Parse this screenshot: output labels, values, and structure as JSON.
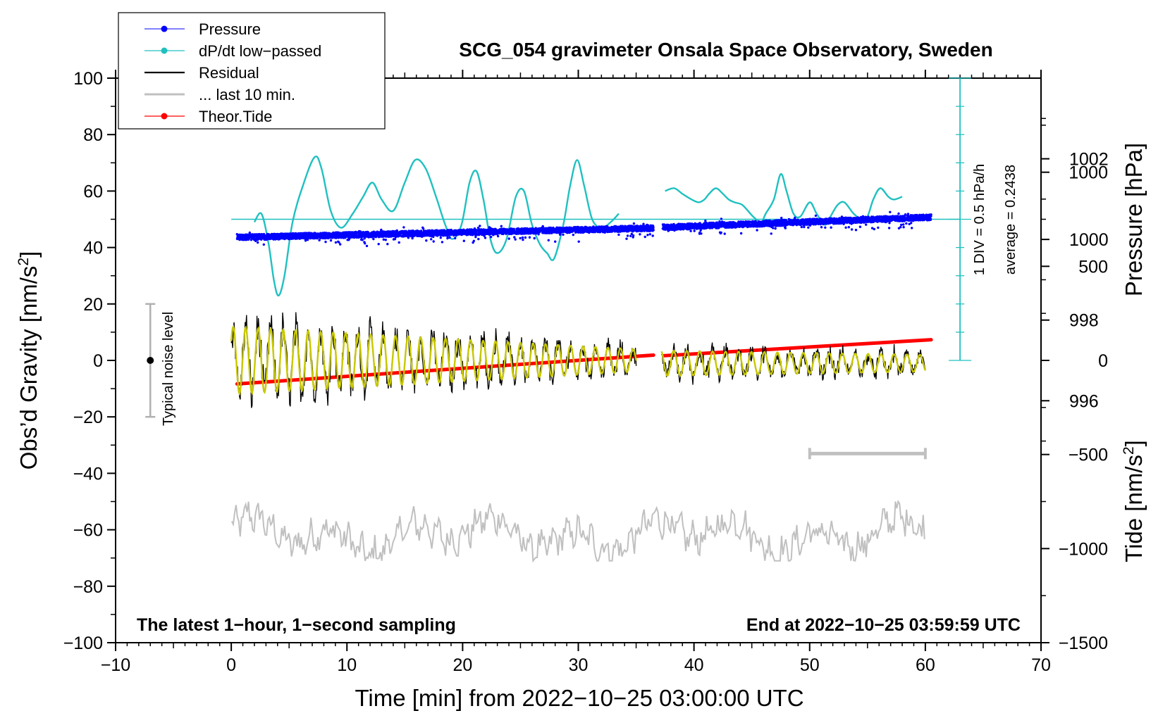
{
  "chart_data": {
    "type": "line",
    "title": "SCG_054 gravimeter Onsala Space Observatory, Sweden",
    "xlabel": "Time [min] from 2022−10−25 03:00:00 UTC",
    "ylabel_left": "Obs’d Gravity [nm/s",
    "ylabel_left_sup": "2",
    "ylabel_left_end": "]",
    "ylabel_right_pressure": "Pressure [hPa]",
    "ylabel_right_tide": "Tide [nm/s",
    "ylabel_right_tide_sup": "2",
    "ylabel_right_tide_end": "]",
    "xlim": [
      -10,
      70
    ],
    "ylim": [
      -100,
      100
    ],
    "x_ticks": [
      -10,
      0,
      10,
      20,
      30,
      40,
      50,
      60,
      70
    ],
    "x_tick_labels": [
      "−10",
      "0",
      "10",
      "20",
      "30",
      "40",
      "50",
      "60",
      "70"
    ],
    "y_ticks": [
      -100,
      -80,
      -60,
      -40,
      -20,
      0,
      20,
      40,
      60,
      80,
      100
    ],
    "y_tick_labels": [
      "−100",
      "−80",
      "−60",
      "−40",
      "−20",
      "0",
      "20",
      "40",
      "60",
      "80",
      "100"
    ],
    "pressure_axis": {
      "ylim": [
        990.0,
        1004.0
      ],
      "ticks": [
        996,
        998,
        1000,
        1002
      ],
      "tick_labels": [
        "996",
        "998",
        "1000",
        "1002"
      ]
    },
    "tide_axis": {
      "ylim": [
        -1500,
        1500
      ],
      "ticks": [
        -1500,
        -1000,
        -500,
        0,
        500,
        1000
      ],
      "tick_labels": [
        "−1500",
        "−1000",
        "−500",
        "0",
        "500",
        "1000"
      ]
    },
    "legend": {
      "placement": "top-left",
      "entries": [
        {
          "label": "Pressure",
          "color": "#0000ff",
          "marker": "dot"
        },
        {
          "label": "dP/dt low−passed",
          "color": "#20c0c0",
          "marker": "dot"
        },
        {
          "label": "Residual",
          "color": "#000000",
          "marker": "none"
        },
        {
          "label": "... last 10 min.",
          "color": "#c0c0c0",
          "marker": "none"
        },
        {
          "label": "Theor.Tide",
          "color": "#ff0000",
          "marker": "dot"
        }
      ]
    },
    "annotations": {
      "note_left": "The latest 1−hour, 1−second sampling",
      "note_right": "End at 2022−10−25 03:59:59 UTC",
      "noise_label": "Typical noise level",
      "noise_bar": {
        "x": -7,
        "center": 0,
        "low": -20,
        "high": 20
      },
      "dpdt_scale_text": "1 DIV = 0.5 hPa/h",
      "dpdt_average_text": "average = 0.2438",
      "dpdt_scale_bar": {
        "x": 63,
        "bottom": 0,
        "top": 100,
        "baseline": 50
      },
      "last10_bar": {
        "x_start": 50,
        "x_end": 60,
        "y": -33
      }
    },
    "series": [
      {
        "name": "Pressure",
        "color": "#0000ff",
        "axis": "pressure",
        "segments": [
          {
            "x": [
              0.5,
              5,
              10,
              15,
              20,
              25,
              30,
              36.5
            ],
            "y": [
              1000.05,
              1000.08,
              1000.12,
              1000.17,
              1000.2,
              1000.23,
              1000.25,
              1000.28
            ]
          },
          {
            "x": [
              37.3,
              42,
              47,
              52,
              57,
              60.5
            ],
            "y": [
              1000.3,
              1000.35,
              1000.4,
              1000.45,
              1000.5,
              1000.55
            ]
          }
        ]
      },
      {
        "name": "dP/dt low−passed",
        "color": "#20c0c0",
        "axis": "gravity_scaled",
        "segments": [
          {
            "x": [
              2.0,
              2.6,
              3.2,
              3.7,
              4.1,
              4.6,
              5.3,
              6.2,
              7.2,
              7.8,
              8.6,
              9.5,
              10.5,
              11.4,
              12.2,
              13.0,
              14.0,
              15.0,
              15.9,
              16.8,
              17.7,
              18.5,
              19.1,
              19.9,
              20.6,
              21.2,
              21.8,
              22.4,
              23.0,
              23.8,
              24.6,
              25.3,
              26.0,
              26.7,
              27.3,
              27.9,
              28.7,
              29.3,
              29.9,
              30.5,
              31.2,
              32.0,
              32.8,
              33.5
            ],
            "y": [
              49,
              52,
              42,
              28,
              23,
              30,
              49,
              62,
              72,
              68,
              53,
              47,
              52,
              58,
              63,
              57,
              53,
              63,
              71,
              68,
              58,
              48,
              43,
              48,
              63,
              67,
              57,
              43,
              38,
              43,
              58,
              60,
              48,
              41,
              38,
              36,
              48,
              62,
              71,
              62,
              50,
              47,
              49,
              52
            ]
          },
          {
            "x": [
              37.5,
              38.3,
              39.0,
              39.8,
              40.4,
              40.9,
              41.3,
              41.9,
              42.5,
              43.0,
              43.5,
              44.2,
              45.1,
              45.8,
              46.2,
              46.9,
              47.5,
              48.0,
              48.6,
              49.2,
              50.0,
              50.6,
              51.3,
              51.8,
              52.4,
              53.0,
              53.8,
              54.5,
              55.0,
              55.5,
              56.1,
              56.8,
              57.3,
              58.0
            ],
            "y": [
              60,
              61,
              59,
              57,
              56,
              57,
              59,
              61,
              59,
              57,
              56,
              55,
              51,
              49,
              52,
              57,
              66,
              60,
              52,
              51,
              56,
              52,
              48,
              51,
              55,
              56,
              52,
              50,
              51,
              57,
              61,
              58,
              57,
              58
            ]
          }
        ]
      },
      {
        "name": "Residual",
        "color": "#000000",
        "axis": "gravity",
        "segments": [
          {
            "x_start": 0.0,
            "x_end": 35.0,
            "center": 0,
            "amplitude_start": 12,
            "amplitude_end": 4,
            "period_min": 1.08
          },
          {
            "x_start": 37.2,
            "x_end": 60.0,
            "center": -1,
            "amplitude_start": 4.5,
            "amplitude_end": 3,
            "period_min": 1.12
          }
        ]
      },
      {
        "name": "... last 10 min.",
        "color": "#c0c0c0",
        "axis": "gravity",
        "x_range": [
          0,
          60
        ],
        "y_range": [
          -70,
          -52
        ]
      },
      {
        "name": "Theor.Tide",
        "color": "#ff0000",
        "axis": "tide",
        "segments": [
          {
            "x": [
              0.5,
              36.5
            ],
            "y": [
              -125,
              28
            ]
          },
          {
            "x": [
              37.4,
              60.5
            ],
            "y": [
              25,
              110
            ]
          }
        ]
      }
    ]
  }
}
